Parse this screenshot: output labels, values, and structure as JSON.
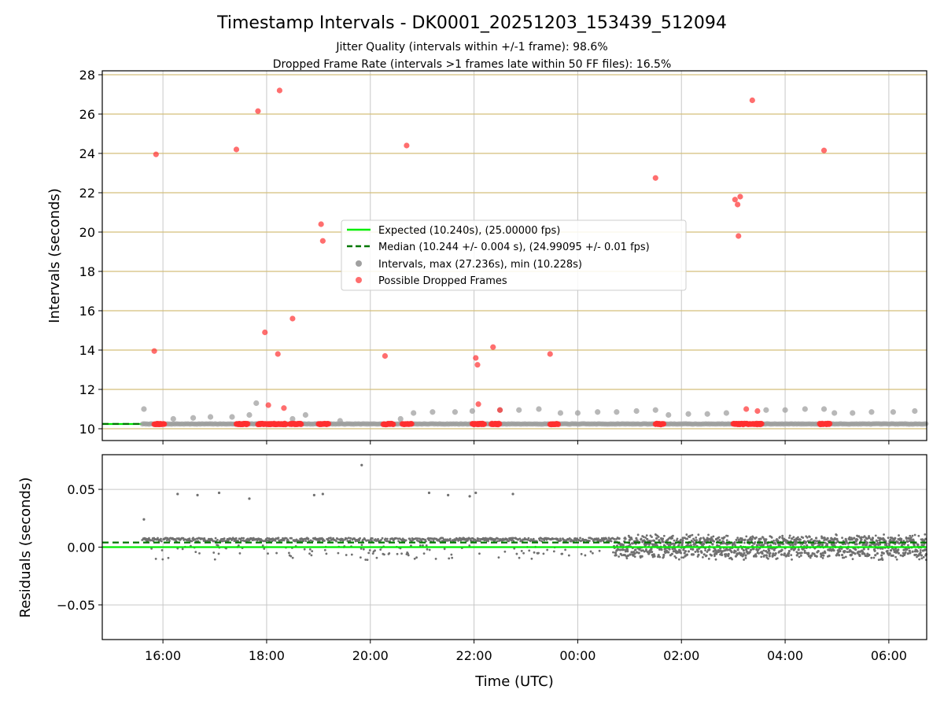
{
  "title": "Timestamp Intervals - DK0001_20251203_153439_512094",
  "subtitle_1": "Jitter Quality (intervals within +/-1 frame): 98.6%",
  "subtitle_2": "Dropped Frame Rate (intervals >1 frames late within 50 FF files): 16.5%",
  "colors": {
    "expected": "#00ee00",
    "median": "#007700",
    "intervals": "#a0a0a0",
    "dropped": "#ff3030",
    "residuals": "#707070",
    "hgrid_top": "#d4bf7a",
    "grid": "#c8c8c8"
  },
  "chart_data": [
    {
      "type": "scatter",
      "ylabel": "Intervals (seconds)",
      "ylim": [
        9.4,
        28.2
      ],
      "yticks": [
        "10",
        "12",
        "14",
        "16",
        "18",
        "20",
        "22",
        "24",
        "26",
        "28"
      ],
      "xlim_hours": [
        14.83,
        30.73
      ],
      "xticks": [
        "16:00",
        "18:00",
        "20:00",
        "22:00",
        "00:00",
        "02:00",
        "04:00",
        "06:00"
      ],
      "grid": true,
      "legend_position": "center",
      "legend": [
        "Expected (10.240s), (25.00000 fps)",
        "Median (10.244 +/- 0.004 s), (24.99095 +/- 0.01 fps)",
        "Intervals, max (27.236s), min (10.228s)",
        "Possible Dropped Frames"
      ],
      "expected": 10.24,
      "median": 10.244,
      "series": [
        {
          "name": "Intervals, max (27.236s), min (10.228s)",
          "points": [
            [
              "15:38",
              11.0
            ],
            [
              "16:12",
              10.5
            ],
            [
              "16:35",
              10.55
            ],
            [
              "16:55",
              10.6
            ],
            [
              "17:20",
              10.6
            ],
            [
              "17:40",
              10.7
            ],
            [
              "17:48",
              11.3
            ],
            [
              "18:30",
              10.5
            ],
            [
              "18:45",
              10.7
            ],
            [
              "19:25",
              10.4
            ],
            [
              "20:35",
              10.5
            ],
            [
              "20:50",
              10.8
            ],
            [
              "21:12",
              10.85
            ],
            [
              "21:38",
              10.85
            ],
            [
              "21:58",
              10.9
            ],
            [
              "22:30",
              10.95
            ],
            [
              "22:52",
              10.95
            ],
            [
              "23:15",
              11.0
            ],
            [
              "23:40",
              10.8
            ],
            [
              "00:00",
              10.8
            ],
            [
              "00:23",
              10.85
            ],
            [
              "00:45",
              10.85
            ],
            [
              "01:08",
              10.9
            ],
            [
              "01:30",
              10.95
            ],
            [
              "01:45",
              10.7
            ],
            [
              "02:08",
              10.75
            ],
            [
              "02:30",
              10.75
            ],
            [
              "02:52",
              10.8
            ],
            [
              "03:38",
              10.95
            ],
            [
              "04:00",
              10.95
            ],
            [
              "04:23",
              11.0
            ],
            [
              "04:45",
              11.0
            ],
            [
              "04:57",
              10.8
            ],
            [
              "05:18",
              10.8
            ],
            [
              "05:40",
              10.85
            ],
            [
              "06:05",
              10.85
            ],
            [
              "06:30",
              10.9
            ]
          ]
        },
        {
          "name": "Possible Dropped Frames",
          "points": [
            [
              "15:50",
              13.95
            ],
            [
              "15:52",
              23.95
            ],
            [
              "17:25",
              24.2
            ],
            [
              "17:50",
              26.15
            ],
            [
              "17:58",
              14.9
            ],
            [
              "18:02",
              11.2
            ],
            [
              "18:13",
              13.8
            ],
            [
              "18:15",
              27.2
            ],
            [
              "18:20",
              11.05
            ],
            [
              "18:30",
              15.6
            ],
            [
              "19:03",
              20.4
            ],
            [
              "19:05",
              19.55
            ],
            [
              "20:17",
              13.7
            ],
            [
              "20:42",
              24.4
            ],
            [
              "22:02",
              13.6
            ],
            [
              "22:04",
              13.25
            ],
            [
              "22:05",
              11.25
            ],
            [
              "22:22",
              14.15
            ],
            [
              "22:30",
              10.95
            ],
            [
              "23:28",
              13.8
            ],
            [
              "01:30",
              22.75
            ],
            [
              "03:02",
              21.65
            ],
            [
              "03:05",
              21.4
            ],
            [
              "03:06",
              19.8
            ],
            [
              "03:08",
              21.8
            ],
            [
              "03:15",
              11.0
            ],
            [
              "03:22",
              26.7
            ],
            [
              "03:28",
              10.9
            ],
            [
              "04:45",
              24.15
            ]
          ]
        }
      ],
      "dropped_clusters": [
        [
          "15:50",
          "16:02"
        ],
        [
          "17:25",
          "17:38"
        ],
        [
          "17:50",
          "18:07"
        ],
        [
          "18:08",
          "18:23"
        ],
        [
          "18:27",
          "18:40"
        ],
        [
          "19:00",
          "19:12"
        ],
        [
          "20:15",
          "20:27"
        ],
        [
          "20:37",
          "20:48"
        ],
        [
          "21:58",
          "22:12"
        ],
        [
          "22:20",
          "22:30"
        ],
        [
          "23:28",
          "23:38"
        ],
        [
          "01:30",
          "01:40"
        ],
        [
          "03:00",
          "03:13"
        ],
        [
          "03:15",
          "03:21"
        ],
        [
          "03:22",
          "03:33"
        ],
        [
          "04:40",
          "04:52"
        ]
      ]
    },
    {
      "type": "scatter",
      "ylabel": "Residuals (seconds)",
      "xlabel": "Time (UTC)",
      "ylim": [
        -0.08,
        0.08
      ],
      "yticks": [
        "−0.05",
        "0.00",
        "0.05"
      ],
      "xlim_hours": [
        14.83,
        30.73
      ],
      "xticks": [
        "16:00",
        "18:00",
        "20:00",
        "22:00",
        "00:00",
        "02:00",
        "04:00",
        "06:00"
      ],
      "grid": true,
      "expected_residual": 0.0,
      "median_residual": 0.004,
      "outliers": [
        [
          "15:38",
          0.024
        ],
        [
          "16:17",
          0.046
        ],
        [
          "16:40",
          0.045
        ],
        [
          "17:05",
          0.047
        ],
        [
          "17:40",
          0.042
        ],
        [
          "18:55",
          0.045
        ],
        [
          "19:05",
          0.046
        ],
        [
          "19:50",
          0.071
        ],
        [
          "21:08",
          0.047
        ],
        [
          "21:30",
          0.045
        ],
        [
          "21:55",
          0.044
        ],
        [
          "22:02",
          0.047
        ],
        [
          "22:45",
          0.046
        ]
      ]
    }
  ]
}
